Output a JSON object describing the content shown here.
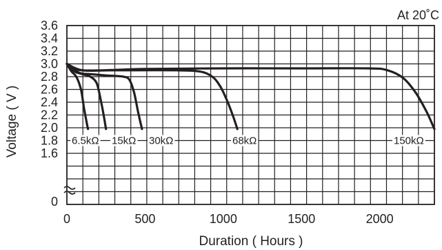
{
  "chart_data": {
    "type": "line",
    "annotation": "At 20˚C",
    "xlabel": "Duration ( Hours )",
    "ylabel": "Voltage ( V )",
    "xlim": [
      0,
      2350
    ],
    "ylim": [
      1.6,
      3.6
    ],
    "x_ticks": [
      "0",
      "500",
      "1000",
      "1500",
      "2000"
    ],
    "y_ticks": [
      "3.6",
      "3.4",
      "3.2",
      "3.0",
      "2.8",
      "2.6",
      "2.4",
      "2.2",
      "2.0",
      "1.8",
      "1.6",
      "0"
    ],
    "axis_break": true,
    "grid": true,
    "series": [
      {
        "name": "6.5kΩ",
        "x": [
          0,
          30,
          60,
          90,
          110,
          125,
          135
        ],
        "y": [
          3.0,
          2.88,
          2.8,
          2.6,
          2.3,
          2.1,
          1.98
        ]
      },
      {
        "name": "15kΩ",
        "x": [
          0,
          50,
          100,
          150,
          190,
          215,
          235,
          250
        ],
        "y": [
          3.0,
          2.88,
          2.84,
          2.8,
          2.7,
          2.45,
          2.2,
          1.98
        ]
      },
      {
        "name": "30kΩ",
        "x": [
          0,
          80,
          150,
          250,
          360,
          400,
          430,
          455,
          480
        ],
        "y": [
          3.0,
          2.86,
          2.84,
          2.82,
          2.8,
          2.75,
          2.55,
          2.25,
          1.98
        ]
      },
      {
        "name": "68kΩ",
        "x": [
          0,
          100,
          300,
          700,
          850,
          930,
          980,
          1020,
          1060,
          1090
        ],
        "y": [
          3.0,
          2.9,
          2.9,
          2.9,
          2.88,
          2.8,
          2.65,
          2.45,
          2.2,
          1.98
        ]
      },
      {
        "name": "150kΩ",
        "x": [
          0,
          100,
          500,
          1000,
          1500,
          1930,
          2050,
          2150,
          2230,
          2300,
          2350
        ],
        "y": [
          3.0,
          2.9,
          2.92,
          2.93,
          2.93,
          2.93,
          2.9,
          2.78,
          2.55,
          2.25,
          1.98
        ]
      }
    ]
  }
}
